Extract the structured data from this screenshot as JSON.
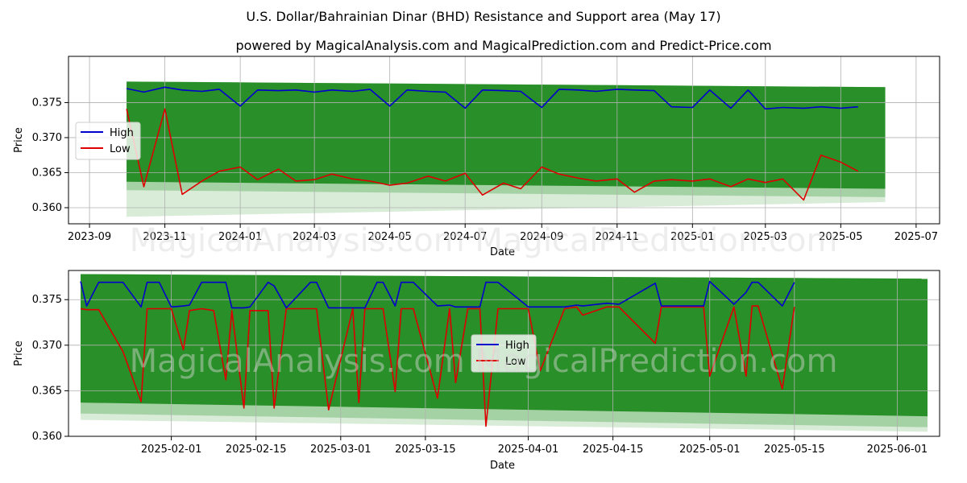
{
  "figure": {
    "title": "U.S. Dollar/Bahrainian Dinar (BHD) Resistance and Support area (May 17)",
    "subtitle": "powered by MagicalAnalysis.com and MagicalPrediction.com and Predict-Price.com",
    "watermark_top": "MagicalAnalysis.com    MagicalPrediction.com",
    "watermark_bottom": "MagicalAnalysis.com    MagicalPrediction.com"
  },
  "colors": {
    "band_dark": "#228b22",
    "band_light": "#90c890",
    "high": "#0000cc",
    "low": "#dd0000",
    "grid": "#b0b0b0"
  },
  "chart_data": [
    {
      "type": "line",
      "name": "top-chart",
      "xlabel": "Date",
      "ylabel": "Price",
      "x_ticks": [
        "2023-09",
        "2023-11",
        "2024-01",
        "2024-03",
        "2024-05",
        "2024-07",
        "2024-09",
        "2024-11",
        "2025-01",
        "2025-03",
        "2025-05",
        "2025-07"
      ],
      "y_ticks": [
        "0.360",
        "0.365",
        "0.370",
        "0.375"
      ],
      "ylim": [
        0.3577,
        0.3816
      ],
      "xlim": [
        "2023-08-15",
        "2025-07-20"
      ],
      "legend": [
        "High",
        "Low"
      ],
      "legend_position": "left",
      "series": [
        {
          "name": "High",
          "x": [
            "2023-10-01",
            "2023-10-15",
            "2023-11-01",
            "2023-11-15",
            "2023-12-01",
            "2023-12-15",
            "2024-01-01",
            "2024-01-15",
            "2024-02-01",
            "2024-02-15",
            "2024-03-01",
            "2024-03-15",
            "2024-04-01",
            "2024-04-15",
            "2024-05-01",
            "2024-05-15",
            "2024-06-01",
            "2024-06-15",
            "2024-07-01",
            "2024-07-15",
            "2024-08-01",
            "2024-08-15",
            "2024-09-01",
            "2024-09-15",
            "2024-10-01",
            "2024-10-15",
            "2024-11-01",
            "2024-11-15",
            "2024-12-01",
            "2024-12-15",
            "2025-01-01",
            "2025-01-15",
            "2025-02-01",
            "2025-02-15",
            "2025-03-01",
            "2025-03-15",
            "2025-04-01",
            "2025-04-15",
            "2025-05-01",
            "2025-05-15"
          ],
          "values": [
            0.377,
            0.3765,
            0.3772,
            0.3768,
            0.3766,
            0.3769,
            0.3745,
            0.3768,
            0.3767,
            0.3768,
            0.3765,
            0.3768,
            0.3766,
            0.3769,
            0.3745,
            0.3768,
            0.3766,
            0.3765,
            0.3742,
            0.3768,
            0.3767,
            0.3766,
            0.3743,
            0.3769,
            0.3768,
            0.3766,
            0.3769,
            0.3768,
            0.3767,
            0.3744,
            0.3743,
            0.3768,
            0.3742,
            0.3768,
            0.3741,
            0.3743,
            0.3742,
            0.3744,
            0.3742,
            0.3744
          ]
        },
        {
          "name": "Low",
          "x": [
            "2023-10-01",
            "2023-10-15",
            "2023-11-01",
            "2023-11-15",
            "2023-12-01",
            "2023-12-15",
            "2024-01-01",
            "2024-01-15",
            "2024-02-01",
            "2024-02-15",
            "2024-03-01",
            "2024-03-15",
            "2024-04-01",
            "2024-04-15",
            "2024-05-01",
            "2024-05-15",
            "2024-06-01",
            "2024-06-15",
            "2024-07-01",
            "2024-07-15",
            "2024-08-01",
            "2024-08-15",
            "2024-09-01",
            "2024-09-15",
            "2024-10-01",
            "2024-10-15",
            "2024-11-01",
            "2024-11-15",
            "2024-12-01",
            "2024-12-15",
            "2025-01-01",
            "2025-01-15",
            "2025-02-01",
            "2025-02-15",
            "2025-03-01",
            "2025-03-15",
            "2025-04-01",
            "2025-04-15",
            "2025-05-01",
            "2025-05-15"
          ],
          "values": [
            0.3741,
            0.363,
            0.3741,
            0.3619,
            0.3638,
            0.3652,
            0.3658,
            0.364,
            0.3655,
            0.3638,
            0.364,
            0.3648,
            0.3641,
            0.3638,
            0.3632,
            0.3635,
            0.3645,
            0.3638,
            0.3649,
            0.3618,
            0.3635,
            0.3627,
            0.3658,
            0.3648,
            0.3642,
            0.3638,
            0.3641,
            0.3622,
            0.3638,
            0.364,
            0.3638,
            0.3641,
            0.363,
            0.3641,
            0.3636,
            0.3641,
            0.3611,
            0.3675,
            0.3665,
            0.3652
          ]
        }
      ],
      "support_band": {
        "start_top": 0.378,
        "end_top": 0.3772,
        "start_bottom": 0.3625,
        "end_bottom": 0.3615,
        "light_bottom_start": 0.3587,
        "light_bottom_end": 0.3608
      }
    },
    {
      "type": "line",
      "name": "bottom-chart",
      "xlabel": "Date",
      "ylabel": "Price",
      "x_ticks": [
        "2025-02-01",
        "2025-02-15",
        "2025-03-01",
        "2025-03-15",
        "2025-04-01",
        "2025-04-15",
        "2025-05-01",
        "2025-05-15",
        "2025-06-01"
      ],
      "y_ticks": [
        "0.360",
        "0.365",
        "0.370",
        "0.375"
      ],
      "ylim": [
        0.36,
        0.3782
      ],
      "xlim": [
        "2025-01-15",
        "2025-06-08"
      ],
      "legend": [
        "High",
        "Low"
      ],
      "legend_position": "center",
      "series": [
        {
          "name": "High",
          "x": [
            "2025-01-17",
            "2025-01-18",
            "2025-01-20",
            "2025-01-24",
            "2025-01-27",
            "2025-01-28",
            "2025-01-30",
            "2025-02-01",
            "2025-02-03",
            "2025-02-04",
            "2025-02-06",
            "2025-02-08",
            "2025-02-10",
            "2025-02-11",
            "2025-02-13",
            "2025-02-14",
            "2025-02-17",
            "2025-02-18",
            "2025-02-20",
            "2025-02-24",
            "2025-02-25",
            "2025-02-27",
            "2025-03-03",
            "2025-03-04",
            "2025-03-05",
            "2025-03-07",
            "2025-03-08",
            "2025-03-10",
            "2025-03-11",
            "2025-03-13",
            "2025-03-17",
            "2025-03-19",
            "2025-03-20",
            "2025-03-22",
            "2025-03-24",
            "2025-03-25",
            "2025-03-27",
            "2025-04-01",
            "2025-04-03",
            "2025-04-07",
            "2025-04-09",
            "2025-04-10",
            "2025-04-14",
            "2025-04-16",
            "2025-04-22",
            "2025-04-23",
            "2025-04-28",
            "2025-04-29",
            "2025-04-30",
            "2025-05-01",
            "2025-05-05",
            "2025-05-07",
            "2025-05-08",
            "2025-05-09",
            "2025-05-13",
            "2025-05-15"
          ],
          "values": [
            0.377,
            0.3743,
            0.3769,
            0.3769,
            0.3742,
            0.3769,
            0.3769,
            0.3742,
            0.3743,
            0.3744,
            0.3769,
            0.3769,
            0.3769,
            0.3741,
            0.3741,
            0.3742,
            0.3769,
            0.3765,
            0.3741,
            0.3769,
            0.3769,
            0.3741,
            0.3741,
            0.3741,
            0.3741,
            0.3769,
            0.3769,
            0.3743,
            0.3769,
            0.3769,
            0.3743,
            0.3744,
            0.3742,
            0.3742,
            0.3742,
            0.3769,
            0.3769,
            0.3742,
            0.3742,
            0.3742,
            0.3744,
            0.3743,
            0.3746,
            0.3745,
            0.3768,
            0.3743,
            0.3743,
            0.3743,
            0.3743,
            0.377,
            0.3745,
            0.3758,
            0.3769,
            0.3769,
            0.3743,
            0.3769
          ]
        },
        {
          "name": "Low",
          "x": [
            "2025-01-17",
            "2025-01-18",
            "2025-01-20",
            "2025-01-24",
            "2025-01-27",
            "2025-01-28",
            "2025-01-30",
            "2025-02-01",
            "2025-02-03",
            "2025-02-04",
            "2025-02-06",
            "2025-02-08",
            "2025-02-10",
            "2025-02-11",
            "2025-02-13",
            "2025-02-14",
            "2025-02-17",
            "2025-02-18",
            "2025-02-20",
            "2025-02-24",
            "2025-02-25",
            "2025-02-27",
            "2025-03-03",
            "2025-03-04",
            "2025-03-05",
            "2025-03-07",
            "2025-03-08",
            "2025-03-10",
            "2025-03-11",
            "2025-03-13",
            "2025-03-17",
            "2025-03-19",
            "2025-03-20",
            "2025-03-22",
            "2025-03-24",
            "2025-03-25",
            "2025-03-27",
            "2025-04-01",
            "2025-04-03",
            "2025-04-07",
            "2025-04-09",
            "2025-04-10",
            "2025-04-14",
            "2025-04-16",
            "2025-04-22",
            "2025-04-23",
            "2025-04-28",
            "2025-04-29",
            "2025-04-30",
            "2025-05-01",
            "2025-05-05",
            "2025-05-07",
            "2025-05-08",
            "2025-05-09",
            "2025-05-13",
            "2025-05-15"
          ],
          "values": [
            0.374,
            0.3739,
            0.3739,
            0.3693,
            0.3638,
            0.374,
            0.374,
            0.374,
            0.3695,
            0.3738,
            0.374,
            0.3738,
            0.3662,
            0.3738,
            0.3631,
            0.3738,
            0.3738,
            0.3631,
            0.374,
            0.374,
            0.374,
            0.3629,
            0.374,
            0.3637,
            0.374,
            0.374,
            0.374,
            0.3649,
            0.374,
            0.374,
            0.3642,
            0.374,
            0.3659,
            0.374,
            0.374,
            0.3611,
            0.374,
            0.374,
            0.3672,
            0.374,
            0.3742,
            0.3733,
            0.3742,
            0.3742,
            0.3702,
            0.3742,
            0.3742,
            0.3742,
            0.3742,
            0.3666,
            0.3742,
            0.3666,
            0.3743,
            0.3743,
            0.3652,
            0.3742
          ]
        }
      ],
      "support_band": {
        "start_top": 0.3778,
        "end_top": 0.3773,
        "start_bottom": 0.3625,
        "end_bottom": 0.361,
        "light_bottom_start": 0.3618,
        "light_bottom_end": 0.3605
      }
    }
  ]
}
